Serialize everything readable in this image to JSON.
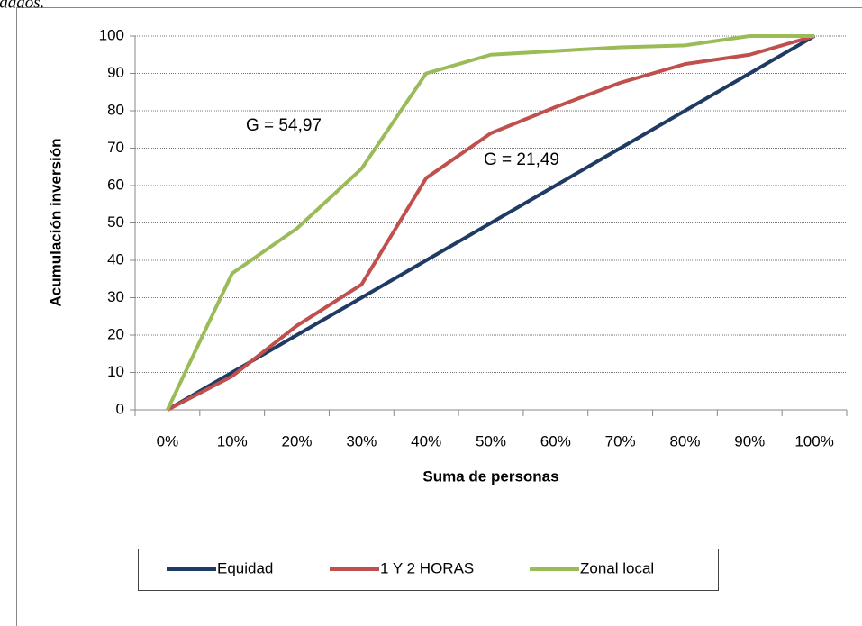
{
  "caption_fragment": "idados.",
  "chart_data": {
    "type": "line",
    "x_label": "Suma de personas",
    "y_label": "Acumulación inversión",
    "categories": [
      "0%",
      "10%",
      "20%",
      "30%",
      "40%",
      "50%",
      "60%",
      "70%",
      "80%",
      "90%",
      "100%"
    ],
    "series": [
      {
        "name": "Equidad",
        "color": "#1f3b63",
        "values": [
          0,
          10,
          20,
          30,
          40,
          50,
          60,
          70,
          80,
          90,
          100
        ]
      },
      {
        "name": "1 Y 2 HORAS",
        "color": "#c0504d",
        "values": [
          0,
          9,
          22.5,
          33.5,
          62,
          74,
          81,
          87.5,
          92.5,
          95,
          100
        ]
      },
      {
        "name": "Zonal local",
        "color": "#9bbb59",
        "values": [
          0,
          36.5,
          48.5,
          64.5,
          90,
          95,
          96,
          97,
          97.5,
          100,
          100
        ]
      }
    ],
    "annotations": [
      "G = 54,97",
      "G = 21,49"
    ],
    "ylim": [
      0,
      100
    ],
    "yticks": [
      0,
      10,
      20,
      30,
      40,
      50,
      60,
      70,
      80,
      90,
      100
    ],
    "grid": true,
    "legend": "bottom"
  }
}
